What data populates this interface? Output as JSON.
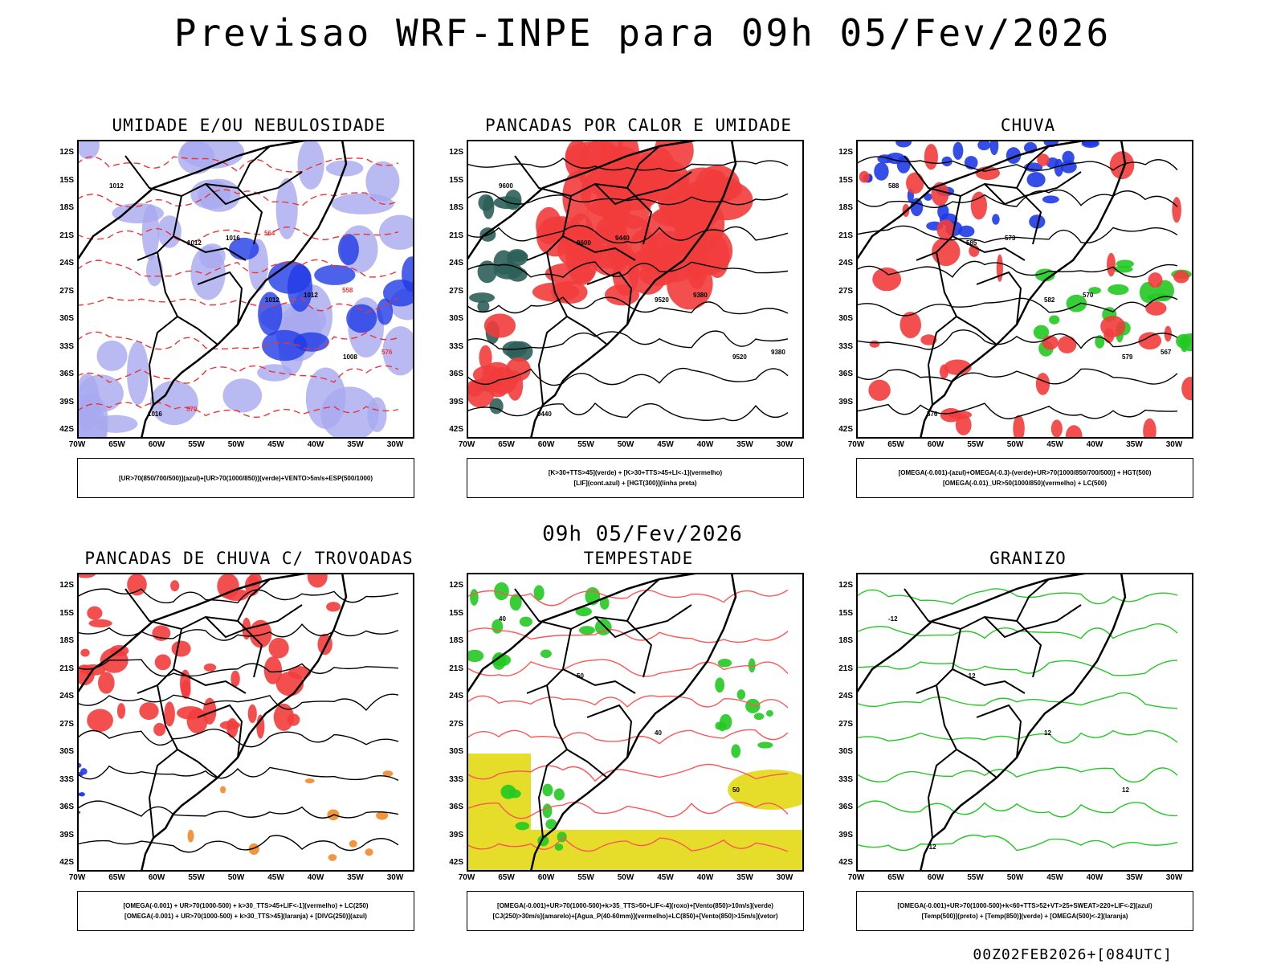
{
  "title": "Previsao WRF-INPE  para 09h 05/Fev/2026",
  "row_date": "09h 05/Fev/2026",
  "footer": "00Z02FEB2026+[084UTC]",
  "lat_labels": [
    "12S",
    "15S",
    "18S",
    "21S",
    "24S",
    "27S",
    "30S",
    "33S",
    "36S",
    "39S",
    "42S"
  ],
  "lon_labels": [
    "70W",
    "65W",
    "60W",
    "55W",
    "50W",
    "45W",
    "40W",
    "35W",
    "30W"
  ],
  "panels": [
    {
      "title": "UMIDADE E/OU NEBULOSIDADE",
      "legend": [
        "[UR>70(850/700/500)](azul)+[UR>70(1000/850)](verde)+VENTO>5m/s+ESP(500/1000)"
      ],
      "labels": [
        "1012",
        "1012",
        "1012",
        "1008",
        "1016",
        "1016",
        "1012",
        "576",
        "570",
        "564",
        "558"
      ]
    },
    {
      "title": "PANCADAS POR CALOR E UMIDADE",
      "legend": [
        "[K>30+TTS>45](verde) + [K>30+TTS>45+LI<-1](vermelho)",
        "[LIF](cont.azul) + [HGT(300)](linha preta)"
      ],
      "labels": [
        "9600",
        "9600",
        "9520",
        "9520",
        "9440",
        "9440",
        "9380",
        "9380"
      ]
    },
    {
      "title": "CHUVA",
      "legend": [
        "[OMEGA(-0.001)-(azul)+OMEGA(-0.3)-(verde)+UR>70(1000/850/700/500)] + HGT(500)",
        "[OMEGA(-0.01)_UR>50(1000/850)(vermelho) + LC(500)"
      ],
      "labels": [
        "588",
        "585",
        "582",
        "579",
        "576",
        "573",
        "570",
        "567"
      ]
    },
    {
      "title": "PANCADAS DE CHUVA C/ TROVOADAS",
      "legend": [
        "[OMEGA(-0.001) + UR>70(1000-500) + k>30_TTS>45+LIF<-1](vermelho) + LC(250)",
        "[OMEGA(-0.001) + UR>70(1000-500) + k>30_TTS>45](laranja) + [DIVG(250)](azul)"
      ],
      "labels": []
    },
    {
      "title": "TEMPESTADE",
      "legend": [
        "[OMEGA(-0.001)+UR>70(1000-500)+k>35_TTS>50+LIF<-4](roxo)+[Vento(850)>10m/s](verde)",
        "[CJ(250)>30m/s](amarelo)+[Agua_P(40-60mm)](vermelho)+LC(850)+[Vento(850)>15m/s](vetor)"
      ],
      "labels": [
        "40",
        "50",
        "40",
        "50"
      ]
    },
    {
      "title": "GRANIZO",
      "legend": [
        "[OMEGA(-0.001)+UR>70(1000-500)+k<60+TTS>52+VT>25+SWEAT>220+LIF<-2](azul)",
        "[Temp(500)](preto) + [Temp(850)](verde) + [OMEGA(500)<-2](laranja)"
      ],
      "labels": [
        "-12",
        "-12",
        "12",
        "12",
        "-12"
      ]
    }
  ],
  "colors": {
    "blue": "#1f3be6",
    "lightblue": "#a9a9f0",
    "green": "#22c922",
    "red": "#f23c3c",
    "darkgreen": "#2e5f5a",
    "yellow": "#e6dd2a",
    "orange": "#f08a2a"
  }
}
